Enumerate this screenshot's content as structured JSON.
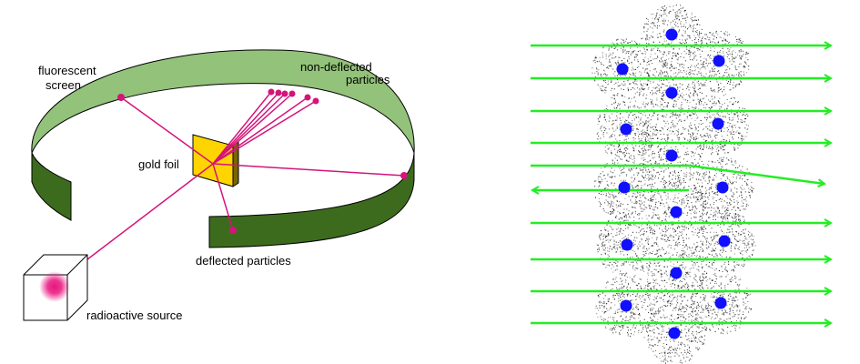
{
  "labels": {
    "screen_line1": "fluorescent",
    "screen_line2": "screen",
    "nondeflected_line1": "non-deflected",
    "nondeflected_line2": "particles",
    "gold_foil": "gold foil",
    "deflected": "deflected particles",
    "source": "radioactive source"
  },
  "colors": {
    "screen_top": "#93c27a",
    "screen_side": "#3d6b1e",
    "gold_foil": "#ffd400",
    "beam": "#d4147a",
    "source_glow": "#e8157e",
    "atom_cloud": "#000000",
    "nucleus": "#1010ff",
    "alpha_path": "#22ee22"
  }
}
